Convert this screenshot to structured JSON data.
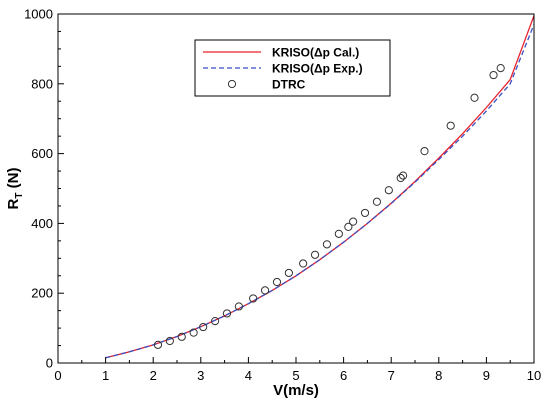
{
  "chart_data": {
    "type": "line",
    "xlabel": "V(m/s)",
    "ylabel_main": "R",
    "ylabel_sub": "T",
    "ylabel_unit": " (N)",
    "xlim": [
      0,
      10
    ],
    "ylim": [
      0,
      1000
    ],
    "xticks": [
      "0",
      "1",
      "2",
      "3",
      "4",
      "5",
      "6",
      "7",
      "8",
      "9",
      "10"
    ],
    "yticks": [
      "0",
      "200",
      "400",
      "600",
      "800",
      "1000"
    ],
    "legend_position": "top-center",
    "grid": false,
    "series": [
      {
        "name": "KRISO(Δp Cal.)",
        "style": "solid",
        "color": "#e8202a",
        "x": [
          1.0,
          1.5,
          2.0,
          2.5,
          3.0,
          3.5,
          4.0,
          4.5,
          5.0,
          5.5,
          6.0,
          6.5,
          7.0,
          7.5,
          8.0,
          8.5,
          9.0,
          9.5,
          10.0
        ],
        "y": [
          15,
          32,
          52,
          76,
          104,
          135,
          170,
          208,
          250,
          296,
          346,
          400,
          458,
          520,
          587,
          657,
          732,
          812,
          995
        ]
      },
      {
        "name": "KRISO(Δp Exp.)",
        "style": "dashed",
        "color": "#3b4fc4",
        "x": [
          1.0,
          1.5,
          2.0,
          2.5,
          3.0,
          3.5,
          4.0,
          4.5,
          5.0,
          5.5,
          6.0,
          6.5,
          7.0,
          7.5,
          8.0,
          8.5,
          9.0,
          9.5,
          10.0
        ],
        "y": [
          15,
          32,
          52,
          76,
          104,
          135,
          170,
          208,
          250,
          296,
          346,
          400,
          457,
          518,
          583,
          650,
          722,
          800,
          970
        ]
      },
      {
        "name": "DTRC",
        "style": "marker",
        "color": "#333333",
        "x": [
          2.1,
          2.35,
          2.6,
          2.85,
          3.05,
          3.3,
          3.55,
          3.8,
          4.1,
          4.35,
          4.6,
          4.85,
          5.15,
          5.4,
          5.65,
          5.9,
          6.1,
          6.2,
          6.45,
          6.7,
          6.95,
          7.2,
          7.25,
          7.7,
          8.25,
          8.75,
          9.15,
          9.3
        ],
        "y": [
          52,
          63,
          75,
          87,
          103,
          120,
          142,
          162,
          185,
          208,
          232,
          258,
          285,
          310,
          340,
          370,
          390,
          405,
          430,
          462,
          495,
          530,
          537,
          607,
          680,
          760,
          825,
          845
        ]
      }
    ]
  }
}
